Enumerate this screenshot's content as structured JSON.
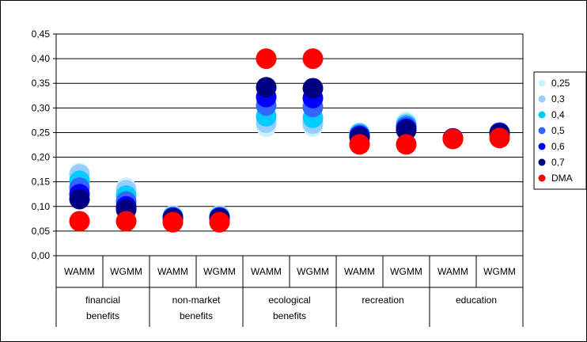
{
  "chart_data": {
    "type": "scatter",
    "title": "",
    "xlabel": "",
    "ylabel": "",
    "ylim": [
      0,
      0.45
    ],
    "y_ticks": [
      "0,00",
      "0,05",
      "0,10",
      "0,15",
      "0,20",
      "0,25",
      "0,30",
      "0,35",
      "0,40",
      "0,45"
    ],
    "grid": "horizontal",
    "legend_position": "right",
    "groups": [
      {
        "label": "financial benefits"
      },
      {
        "label": "non-market benefits"
      },
      {
        "label": "ecological benefits"
      },
      {
        "label": "recreation"
      },
      {
        "label": "education"
      }
    ],
    "categories": [
      "WAMM",
      "WGMM",
      "WAMM",
      "WGMM",
      "WAMM",
      "WGMM",
      "WAMM",
      "WGMM",
      "WAMM",
      "WGMM"
    ],
    "series": [
      {
        "name": "0,25",
        "color": "#ccf2ff",
        "values": [
          0.168,
          0.138,
          0.082,
          0.082,
          0.262,
          0.262,
          0.25,
          0.272,
          0.238,
          0.25
        ]
      },
      {
        "name": "0,3",
        "color": "#99ccff",
        "values": [
          0.165,
          0.133,
          0.081,
          0.081,
          0.27,
          0.268,
          0.249,
          0.268,
          0.238,
          0.25
        ]
      },
      {
        "name": "0,4",
        "color": "#00ccff",
        "values": [
          0.152,
          0.122,
          0.079,
          0.079,
          0.283,
          0.28,
          0.247,
          0.265,
          0.238,
          0.25
        ]
      },
      {
        "name": "0,5",
        "color": "#3366ff",
        "values": [
          0.138,
          0.11,
          0.078,
          0.078,
          0.305,
          0.302,
          0.245,
          0.262,
          0.238,
          0.25
        ]
      },
      {
        "name": "0,6",
        "color": "#0000ff",
        "values": [
          0.125,
          0.1,
          0.077,
          0.077,
          0.322,
          0.32,
          0.243,
          0.258,
          0.238,
          0.249
        ]
      },
      {
        "name": "0,7",
        "color": "#000080",
        "values": [
          0.115,
          0.094,
          0.076,
          0.076,
          0.342,
          0.34,
          0.24,
          0.255,
          0.238,
          0.248
        ]
      },
      {
        "name": "DMA",
        "color": "#ff0000",
        "values": [
          0.07,
          0.07,
          0.068,
          0.068,
          0.4,
          0.4,
          0.226,
          0.226,
          0.237,
          0.239
        ]
      }
    ]
  }
}
